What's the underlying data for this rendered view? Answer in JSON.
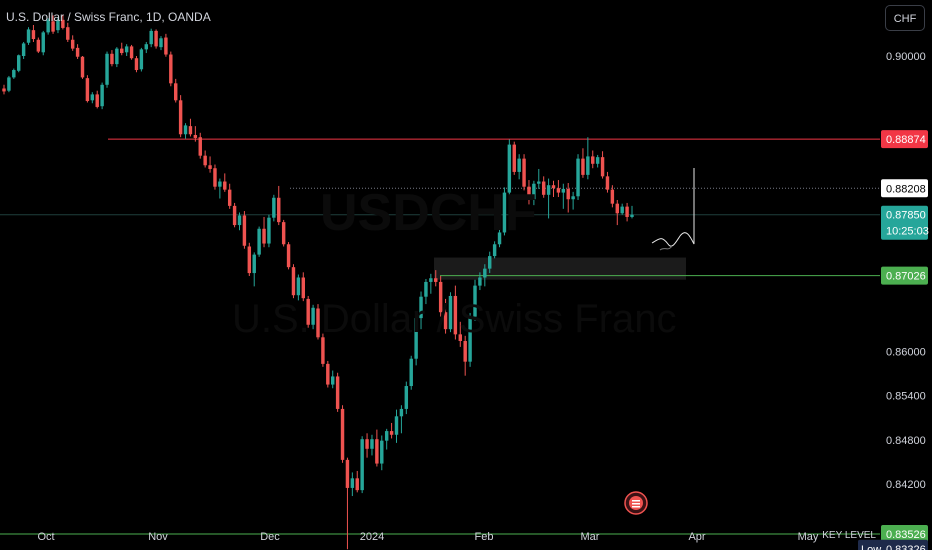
{
  "header": {
    "symbol_title": "U.S. Dollar / Swiss Franc, 1D, OANDA",
    "currency_button": "CHF"
  },
  "watermark": {
    "ticker": "USDCHF",
    "description": "U.S. Dollar / Swiss Franc"
  },
  "colors": {
    "background": "#000000",
    "up": "#26a69a",
    "down": "#ef5350",
    "resistance": "#f23645",
    "support": "#4caf50",
    "axis_text": "#d1d4dc",
    "zone": "#1e1e1e"
  },
  "icons": {
    "events": "flag-icon"
  },
  "chart_data": {
    "type": "candlestick",
    "title": "U.S. Dollar / Swiss Franc, 1D, OANDA",
    "y_ticks": [
      "0.90000",
      "0.86000",
      "0.85400",
      "0.84800",
      "0.84200"
    ],
    "x_ticks": [
      "Oct",
      "Nov",
      "Dec",
      "2024",
      "Feb",
      "Mar",
      "Apr",
      "May"
    ],
    "y_range": [
      0.832,
      0.9045
    ],
    "price_labels": [
      {
        "label": "0.88874",
        "value": 0.88874,
        "kind": "resistance"
      },
      {
        "label": "0.88208",
        "value": 0.88208,
        "kind": "dotted-line"
      },
      {
        "label": "0.87850",
        "value": 0.8785,
        "kind": "last-price",
        "countdown": "10:25:03"
      },
      {
        "label": "0.87026",
        "value": 0.87026,
        "kind": "support"
      },
      {
        "label": "0.83526",
        "value": 0.83526,
        "kind": "key-level",
        "line_label": "KEY LEVEL"
      },
      {
        "label": "0.83326",
        "value": 0.83326,
        "kind": "low",
        "prefix": "Low"
      }
    ],
    "zone": {
      "top": 0.8727,
      "bottom": 0.8697
    },
    "candles": [
      [
        0.8956,
        0.8961,
        0.8948,
        0.8952
      ],
      [
        0.8953,
        0.8973,
        0.8951,
        0.8971
      ],
      [
        0.8971,
        0.8983,
        0.8969,
        0.8981
      ],
      [
        0.898,
        0.9002,
        0.8978,
        0.9001
      ],
      [
        0.9,
        0.9019,
        0.8996,
        0.9017
      ],
      [
        0.9018,
        0.9039,
        0.9015,
        0.9036
      ],
      [
        0.9035,
        0.9042,
        0.9019,
        0.9023
      ],
      [
        0.9022,
        0.9025,
        0.9004,
        0.9006
      ],
      [
        0.9005,
        0.9034,
        0.9001,
        0.9032
      ],
      [
        0.9032,
        0.9051,
        0.9029,
        0.9049
      ],
      [
        0.9047,
        0.9055,
        0.903,
        0.9033
      ],
      [
        0.9035,
        0.9052,
        0.9031,
        0.9049
      ],
      [
        0.9049,
        0.9056,
        0.9036,
        0.9038
      ],
      [
        0.9039,
        0.9045,
        0.9019,
        0.9022
      ],
      [
        0.9022,
        0.9028,
        0.9007,
        0.901
      ],
      [
        0.9011,
        0.9016,
        0.8996,
        0.8999
      ],
      [
        0.8999,
        0.9,
        0.8969,
        0.8971
      ],
      [
        0.897,
        0.8974,
        0.8937,
        0.8939
      ],
      [
        0.894,
        0.8951,
        0.8936,
        0.8948
      ],
      [
        0.8948,
        0.8953,
        0.8929,
        0.8931
      ],
      [
        0.8932,
        0.8964,
        0.8928,
        0.8961
      ],
      [
        0.8961,
        0.9006,
        0.8957,
        0.9003
      ],
      [
        0.9003,
        0.9008,
        0.8986,
        0.8989
      ],
      [
        0.8989,
        0.9012,
        0.8985,
        0.901
      ],
      [
        0.901,
        0.9018,
        0.9001,
        0.9004
      ],
      [
        0.9005,
        0.9016,
        0.9,
        0.9013
      ],
      [
        0.9013,
        0.9015,
        0.8995,
        0.8997
      ],
      [
        0.8997,
        0.9,
        0.8978,
        0.8981
      ],
      [
        0.8982,
        0.9011,
        0.8979,
        0.9009
      ],
      [
        0.9009,
        0.9019,
        0.9004,
        0.9016
      ],
      [
        0.9016,
        0.9037,
        0.9012,
        0.9034
      ],
      [
        0.9034,
        0.9036,
        0.901,
        0.9013
      ],
      [
        0.9012,
        0.9027,
        0.9008,
        0.9024
      ],
      [
        0.9025,
        0.903,
        0.8999,
        0.9002
      ],
      [
        0.9002,
        0.9006,
        0.8959,
        0.8963
      ],
      [
        0.8963,
        0.8969,
        0.8937,
        0.894
      ],
      [
        0.894,
        0.8947,
        0.889,
        0.8894
      ],
      [
        0.8894,
        0.8909,
        0.8888,
        0.8906
      ],
      [
        0.8905,
        0.8915,
        0.8891,
        0.8894
      ],
      [
        0.8893,
        0.8905,
        0.8884,
        0.8889
      ],
      [
        0.889,
        0.8896,
        0.8861,
        0.8865
      ],
      [
        0.8865,
        0.8872,
        0.8849,
        0.8852
      ],
      [
        0.8852,
        0.8864,
        0.8842,
        0.8847
      ],
      [
        0.8848,
        0.8853,
        0.8819,
        0.8823
      ],
      [
        0.8823,
        0.8834,
        0.8807,
        0.883
      ],
      [
        0.883,
        0.8841,
        0.8816,
        0.8819
      ],
      [
        0.8819,
        0.8827,
        0.8793,
        0.8797
      ],
      [
        0.8797,
        0.8801,
        0.8768,
        0.8771
      ],
      [
        0.8771,
        0.8788,
        0.8764,
        0.8784
      ],
      [
        0.8784,
        0.879,
        0.8739,
        0.8743
      ],
      [
        0.8742,
        0.8747,
        0.8702,
        0.8706
      ],
      [
        0.8706,
        0.8734,
        0.8688,
        0.8731
      ],
      [
        0.8731,
        0.8769,
        0.8728,
        0.8766
      ],
      [
        0.8766,
        0.8782,
        0.8741,
        0.8746
      ],
      [
        0.8746,
        0.8785,
        0.8741,
        0.8781
      ],
      [
        0.8781,
        0.8812,
        0.8776,
        0.8808
      ],
      [
        0.8808,
        0.8824,
        0.8771,
        0.8775
      ],
      [
        0.8775,
        0.8778,
        0.8742,
        0.8745
      ],
      [
        0.8745,
        0.8748,
        0.8711,
        0.8714
      ],
      [
        0.8714,
        0.8718,
        0.8672,
        0.8676
      ],
      [
        0.8676,
        0.8704,
        0.8669,
        0.87
      ],
      [
        0.87,
        0.8707,
        0.8668,
        0.8672
      ],
      [
        0.8671,
        0.8675,
        0.8632,
        0.8636
      ],
      [
        0.8636,
        0.8663,
        0.863,
        0.8659
      ],
      [
        0.8658,
        0.8664,
        0.8616,
        0.8619
      ],
      [
        0.8619,
        0.8624,
        0.8579,
        0.8583
      ],
      [
        0.8583,
        0.8587,
        0.8551,
        0.8555
      ],
      [
        0.8555,
        0.8574,
        0.855,
        0.8566
      ],
      [
        0.8566,
        0.8571,
        0.8518,
        0.8522
      ],
      [
        0.8522,
        0.8527,
        0.8449,
        0.8453
      ],
      [
        0.8453,
        0.8456,
        0.8332,
        0.8415
      ],
      [
        0.8415,
        0.8436,
        0.8404,
        0.8428
      ],
      [
        0.8428,
        0.8438,
        0.8409,
        0.8412
      ],
      [
        0.8412,
        0.8485,
        0.8408,
        0.8481
      ],
      [
        0.8481,
        0.8489,
        0.8456,
        0.8468
      ],
      [
        0.8468,
        0.8487,
        0.8459,
        0.8481
      ],
      [
        0.8481,
        0.8494,
        0.8444,
        0.8448
      ],
      [
        0.8448,
        0.8486,
        0.8439,
        0.8479
      ],
      [
        0.8479,
        0.8495,
        0.8467,
        0.8492
      ],
      [
        0.8492,
        0.8503,
        0.8482,
        0.8487
      ],
      [
        0.8487,
        0.8521,
        0.8476,
        0.8512
      ],
      [
        0.8512,
        0.8527,
        0.8489,
        0.8522
      ],
      [
        0.8522,
        0.8559,
        0.8515,
        0.8553
      ],
      [
        0.8553,
        0.8594,
        0.8548,
        0.859
      ],
      [
        0.859,
        0.8652,
        0.8581,
        0.8645
      ],
      [
        0.8645,
        0.8681,
        0.863,
        0.8674
      ],
      [
        0.8674,
        0.8698,
        0.8664,
        0.8694
      ],
      [
        0.8694,
        0.8705,
        0.8678,
        0.8699
      ],
      [
        0.8699,
        0.871,
        0.8688,
        0.8694
      ],
      [
        0.8694,
        0.8702,
        0.8647,
        0.8653
      ],
      [
        0.8653,
        0.8671,
        0.8624,
        0.863
      ],
      [
        0.863,
        0.868,
        0.8626,
        0.8675
      ],
      [
        0.8675,
        0.8689,
        0.8616,
        0.8623
      ],
      [
        0.8623,
        0.864,
        0.8606,
        0.8614
      ],
      [
        0.8614,
        0.8621,
        0.8567,
        0.8586
      ],
      [
        0.8586,
        0.8652,
        0.8579,
        0.8647
      ],
      [
        0.8647,
        0.8697,
        0.8641,
        0.8689
      ],
      [
        0.8689,
        0.8707,
        0.8683,
        0.87
      ],
      [
        0.87,
        0.8718,
        0.8688,
        0.8712
      ],
      [
        0.8712,
        0.8735,
        0.8706,
        0.8729
      ],
      [
        0.8729,
        0.8749,
        0.8726,
        0.8745
      ],
      [
        0.8745,
        0.8766,
        0.8741,
        0.8761
      ],
      [
        0.8761,
        0.8822,
        0.8757,
        0.8815
      ],
      [
        0.8815,
        0.8887,
        0.8806,
        0.888
      ],
      [
        0.888,
        0.8884,
        0.8839,
        0.8843
      ],
      [
        0.8843,
        0.8867,
        0.8833,
        0.8861
      ],
      [
        0.8861,
        0.8867,
        0.8818,
        0.8823
      ],
      [
        0.8823,
        0.8832,
        0.8799,
        0.8806
      ],
      [
        0.8806,
        0.8831,
        0.8798,
        0.8827
      ],
      [
        0.8827,
        0.8847,
        0.882,
        0.883
      ],
      [
        0.883,
        0.8837,
        0.8808,
        0.8812
      ],
      [
        0.8812,
        0.8834,
        0.878,
        0.8825
      ],
      [
        0.8825,
        0.8831,
        0.8809,
        0.8821
      ],
      [
        0.8821,
        0.8832,
        0.8809,
        0.8815
      ],
      [
        0.8815,
        0.8827,
        0.8793,
        0.882
      ],
      [
        0.882,
        0.8828,
        0.8788,
        0.8806
      ],
      [
        0.8806,
        0.8816,
        0.8792,
        0.881
      ],
      [
        0.881,
        0.8867,
        0.8805,
        0.8861
      ],
      [
        0.8861,
        0.8875,
        0.8835,
        0.8839
      ],
      [
        0.8839,
        0.889,
        0.8833,
        0.8864
      ],
      [
        0.8864,
        0.8872,
        0.8848,
        0.8854
      ],
      [
        0.8854,
        0.8866,
        0.8849,
        0.8863
      ],
      [
        0.8863,
        0.8871,
        0.8834,
        0.8837
      ],
      [
        0.8837,
        0.8843,
        0.8815,
        0.8819
      ],
      [
        0.8819,
        0.8825,
        0.8795,
        0.88
      ],
      [
        0.88,
        0.8805,
        0.8771,
        0.8787
      ],
      [
        0.8787,
        0.88,
        0.8785,
        0.8796
      ],
      [
        0.8796,
        0.8801,
        0.8776,
        0.8782
      ],
      [
        0.8782,
        0.8797,
        0.878,
        0.8785
      ]
    ]
  }
}
